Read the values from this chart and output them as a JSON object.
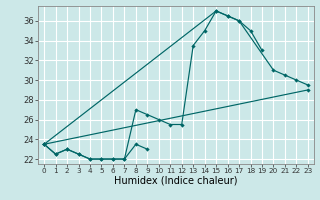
{
  "xlabel": "Humidex (Indice chaleur)",
  "bg_color": "#cce8e8",
  "grid_color": "#ffffff",
  "line_color": "#006666",
  "xlim": [
    -0.5,
    23.5
  ],
  "ylim": [
    21.5,
    37.5
  ],
  "xticks": [
    0,
    1,
    2,
    3,
    4,
    5,
    6,
    7,
    8,
    9,
    10,
    11,
    12,
    13,
    14,
    15,
    16,
    17,
    18,
    19,
    20,
    21,
    22,
    23
  ],
  "yticks": [
    22,
    24,
    26,
    28,
    30,
    32,
    34,
    36
  ],
  "series": [
    {
      "x": [
        0,
        1,
        2,
        3,
        4,
        5,
        6,
        7,
        8,
        9,
        10,
        11,
        12,
        13,
        14,
        15,
        16,
        17,
        18,
        19
      ],
      "y": [
        23.5,
        22.5,
        23.0,
        22.5,
        22.0,
        22.0,
        22.0,
        22.0,
        27.0,
        26.5,
        26.0,
        25.5,
        25.5,
        33.5,
        35.0,
        37.0,
        36.5,
        36.0,
        35.0,
        33.0
      ]
    },
    {
      "x": [
        0,
        1,
        2,
        3,
        4,
        5,
        6,
        7,
        8,
        9
      ],
      "y": [
        23.5,
        22.5,
        23.0,
        22.5,
        22.0,
        22.0,
        22.0,
        22.0,
        23.5,
        23.0
      ]
    },
    {
      "x": [
        0,
        15,
        16,
        17,
        20,
        21,
        22,
        23
      ],
      "y": [
        23.5,
        37.0,
        36.5,
        36.0,
        31.0,
        30.5,
        30.0,
        29.5
      ]
    },
    {
      "x": [
        0,
        23
      ],
      "y": [
        23.5,
        29.0
      ]
    }
  ]
}
